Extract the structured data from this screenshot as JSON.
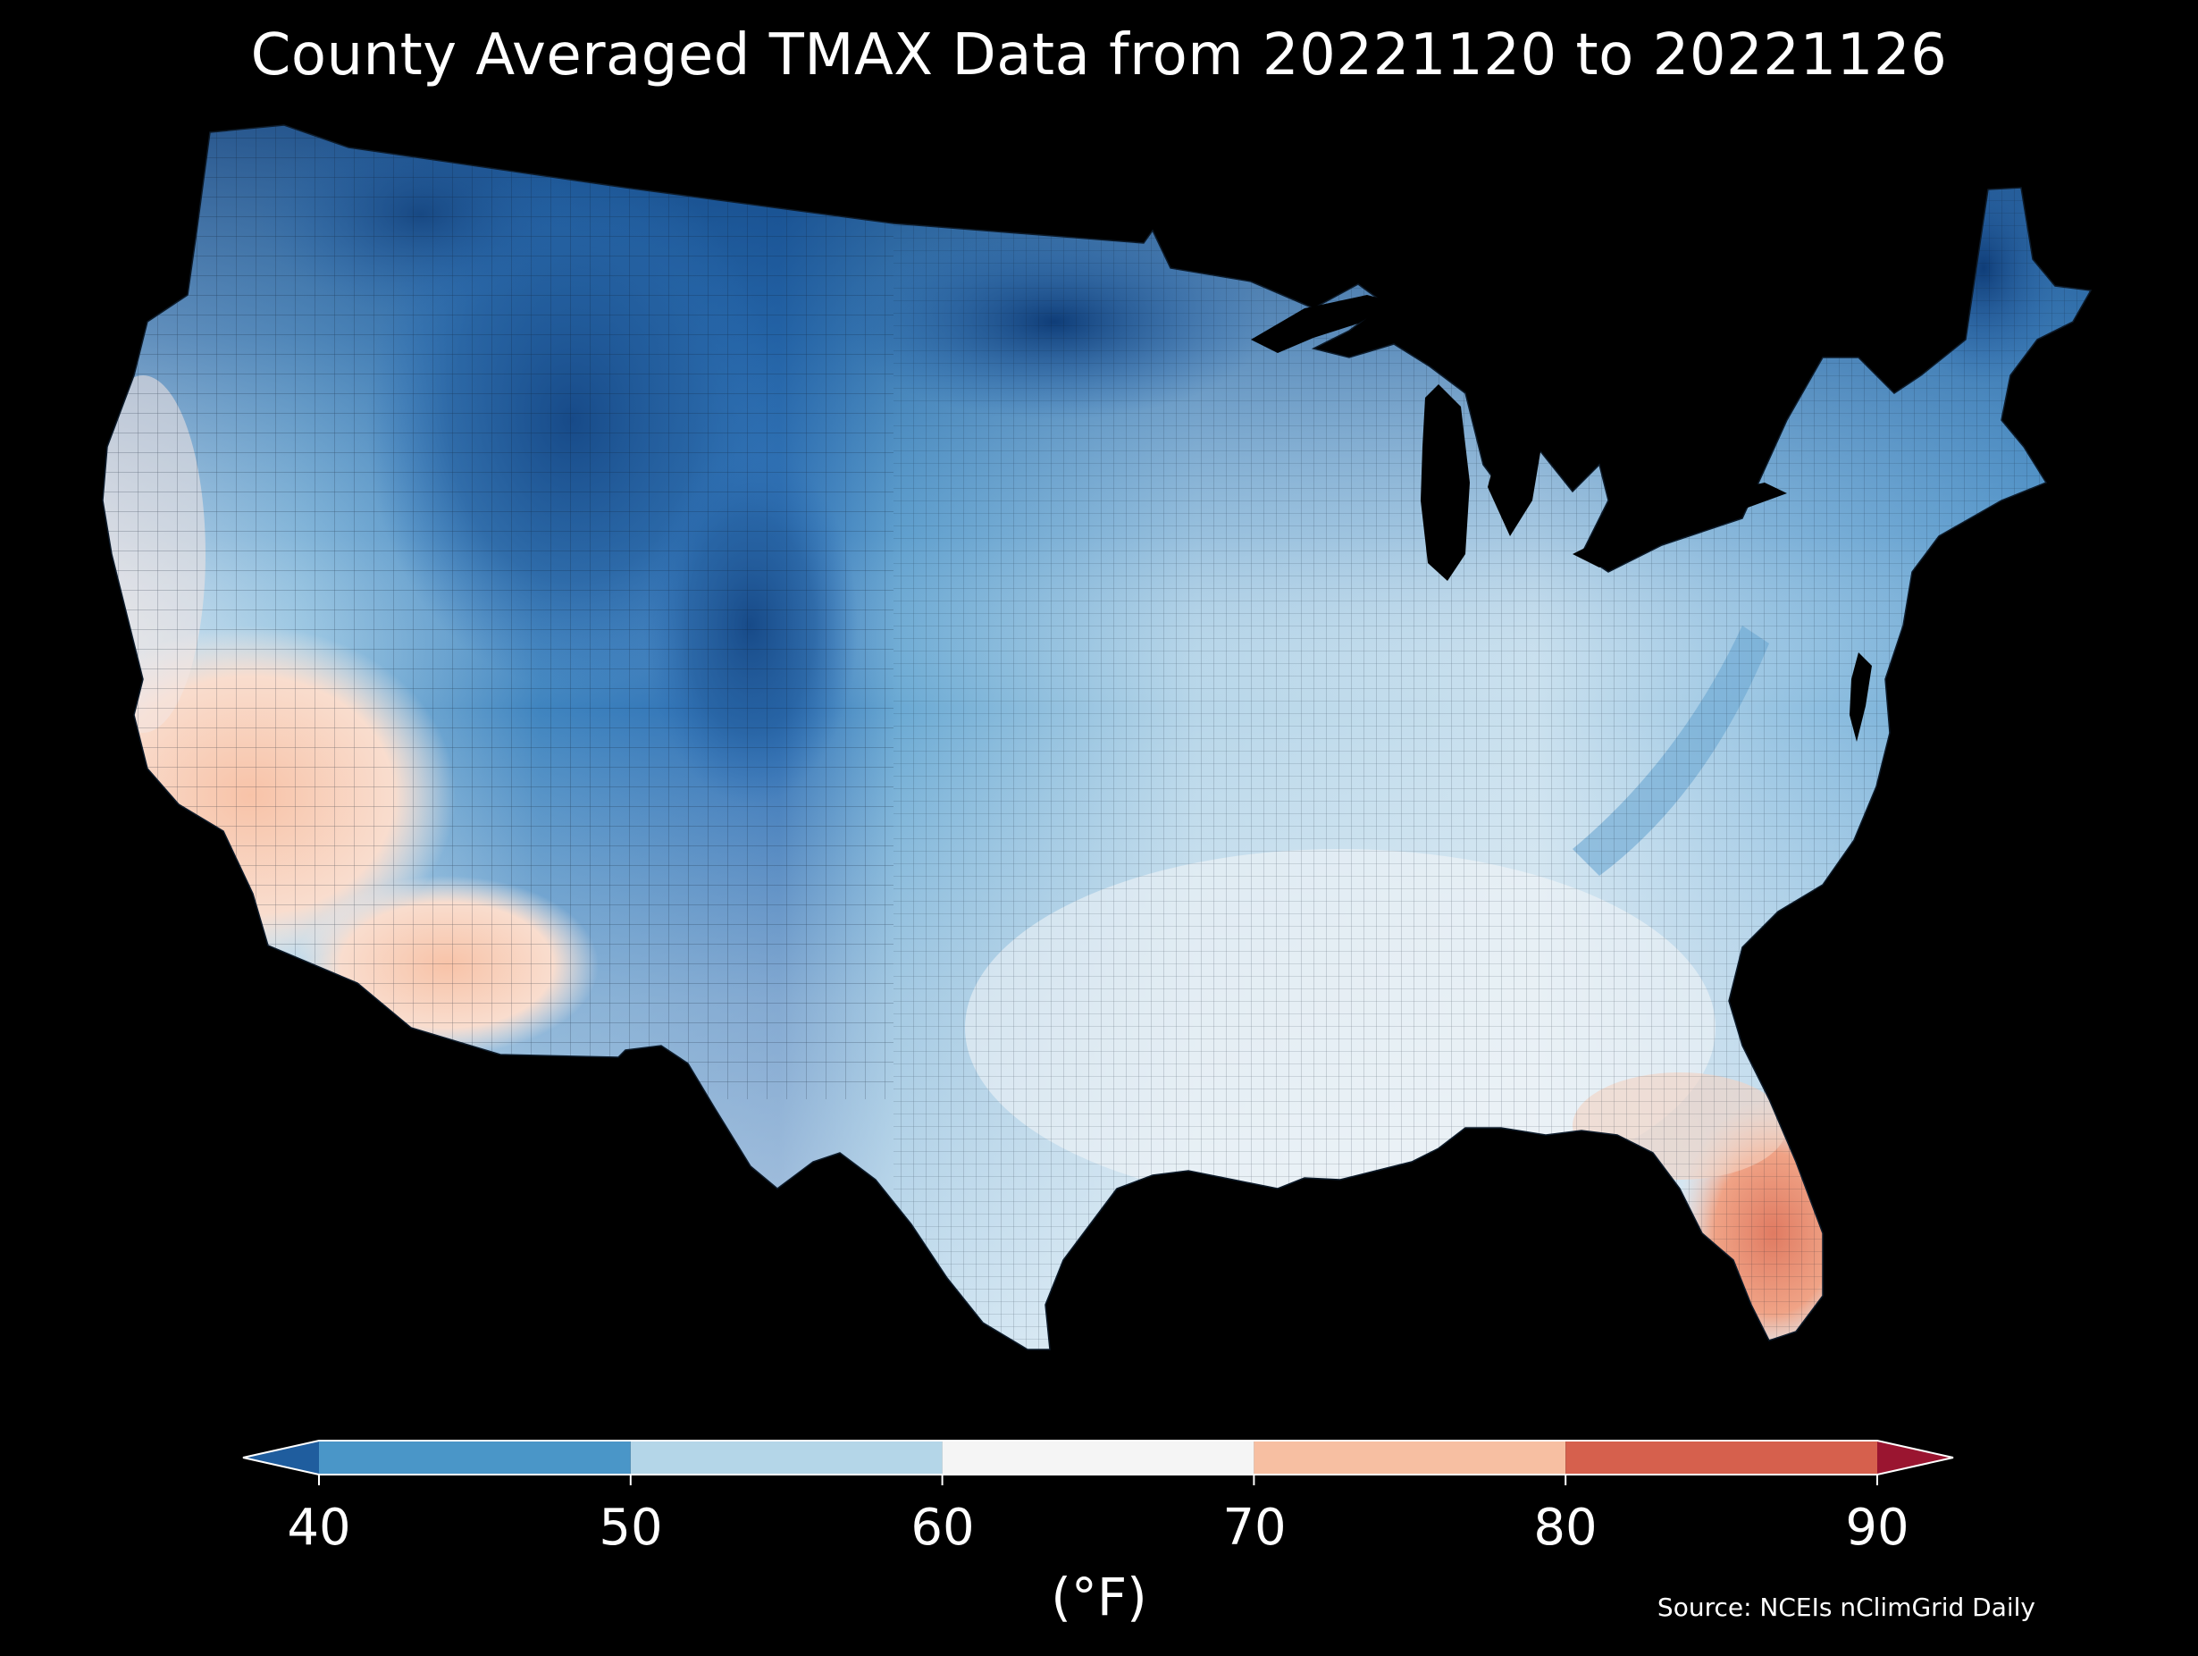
{
  "title": "County Averaged TMAX Data from 20221120 to 20221126",
  "colorbar": {
    "ticks": [
      "40",
      "50",
      "60",
      "70",
      "80",
      "90"
    ],
    "unit": "(°F)",
    "min": 40,
    "max": 90,
    "extend": "both",
    "bins": [
      {
        "from": null,
        "to": 40,
        "color": "#1f5d9e"
      },
      {
        "from": 40,
        "to": 50,
        "color": "#4a96c8"
      },
      {
        "from": 50,
        "to": 60,
        "color": "#b4d6e8"
      },
      {
        "from": 60,
        "to": 70,
        "color": "#f5f5f5"
      },
      {
        "from": 70,
        "to": 80,
        "color": "#f7bfa2"
      },
      {
        "from": 80,
        "to": 90,
        "color": "#d6604d"
      },
      {
        "from": 90,
        "to": null,
        "color": "#9a1530"
      }
    ]
  },
  "source": "Source: NCEIs nClimGrid Daily",
  "map": {
    "region": "contiguous-united-states",
    "variable": "TMAX",
    "background": "#000000",
    "boundary_color": "#000000"
  }
}
